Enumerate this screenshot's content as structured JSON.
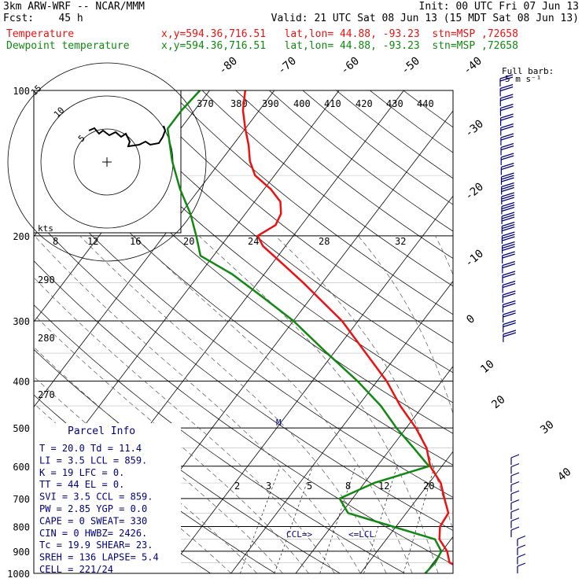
{
  "header": {
    "line1_left": "3km ARW-WRF -- NCAR/MMM",
    "line1_right": "Init: 00 UTC Fri 07 Jun 13",
    "line2_left": "Fcst:    45 h",
    "line2_right": "Valid: 21 UTC Sat 08 Jun 13 (15 MDT Sat 08 Jun 13)",
    "temp_label": "Temperature",
    "temp_info": "x,y=594.36,716.51   lat,lon= 44.88, -93.23  stn=MSP ,72658",
    "dew_label": "Dewpoint temperature",
    "dew_info": "x,y=594.36,716.51   lat,lon= 44.88, -93.23  stn=MSP ,72658"
  },
  "colors": {
    "temperature": "#ee1111",
    "dewpoint": "#118811",
    "text": "#000000",
    "parcel": "#000080",
    "barb": "#000080"
  },
  "chart_data": {
    "type": "line",
    "diagram": "skew-T log-p",
    "pressure_levels": [
      100,
      200,
      300,
      400,
      500,
      600,
      700,
      800,
      900,
      1000
    ],
    "isotherm_labels": [
      -80,
      -70,
      -60,
      -50,
      -40,
      -30,
      -20,
      -10,
      0,
      10,
      20,
      30,
      40
    ],
    "theta_labels": [
      370,
      380,
      390,
      400,
      410,
      420,
      430,
      440
    ],
    "theta_e_labels": [
      290,
      280,
      270
    ],
    "mixing_ratio_upper": [
      8,
      12,
      16,
      20,
      24,
      28,
      32
    ],
    "mixing_ratio_lower": [
      2,
      3,
      5,
      8,
      12,
      20
    ],
    "hodograph": {
      "units_label": "kts",
      "ring_labels": [
        "5",
        "10",
        "15"
      ]
    },
    "wind_barb_legend": {
      "line1": "Full barb:",
      "line2": "5 m s⁻¹"
    },
    "annotations": {
      "ccl": "CCL=>",
      "lcl": "<=LCL"
    },
    "series": [
      {
        "name": "Temperature",
        "points": [
          {
            "p": 1000,
            "t": 27.0
          },
          {
            "p": 950,
            "t": 22.5
          },
          {
            "p": 900,
            "t": 20.8
          },
          {
            "p": 850,
            "t": 18.2
          },
          {
            "p": 800,
            "t": 16.8
          },
          {
            "p": 750,
            "t": 16.5
          },
          {
            "p": 700,
            "t": 14.2
          },
          {
            "p": 650,
            "t": 11.8
          },
          {
            "p": 600,
            "t": 8.2
          },
          {
            "p": 550,
            "t": 5.5
          },
          {
            "p": 500,
            "t": 1.5
          },
          {
            "p": 450,
            "t": -3.5
          },
          {
            "p": 400,
            "t": -8.5
          },
          {
            "p": 350,
            "t": -15.0
          },
          {
            "p": 300,
            "t": -22.5
          },
          {
            "p": 250,
            "t": -33.0
          },
          {
            "p": 230,
            "t": -38.0
          },
          {
            "p": 210,
            "t": -43.5
          },
          {
            "p": 200,
            "t": -45.5
          },
          {
            "p": 190,
            "t": -44.0
          },
          {
            "p": 180,
            "t": -44.5
          },
          {
            "p": 170,
            "t": -46.0
          },
          {
            "p": 160,
            "t": -49.0
          },
          {
            "p": 150,
            "t": -53.0
          },
          {
            "p": 140,
            "t": -55.5
          },
          {
            "p": 130,
            "t": -57.5
          },
          {
            "p": 120,
            "t": -60.0
          },
          {
            "p": 110,
            "t": -62.5
          },
          {
            "p": 100,
            "t": -64.5
          }
        ]
      },
      {
        "name": "Dewpoint temperature",
        "points": [
          {
            "p": 1000,
            "t": 20.0
          },
          {
            "p": 950,
            "t": 20.3
          },
          {
            "p": 900,
            "t": 19.9
          },
          {
            "p": 850,
            "t": 17.5
          },
          {
            "p": 800,
            "t": 9.5
          },
          {
            "p": 750,
            "t": 1.0
          },
          {
            "p": 700,
            "t": -2.0
          },
          {
            "p": 650,
            "t": 1.5
          },
          {
            "p": 600,
            "t": 8.0
          },
          {
            "p": 550,
            "t": 3.5
          },
          {
            "p": 500,
            "t": -1.5
          },
          {
            "p": 450,
            "t": -6.5
          },
          {
            "p": 400,
            "t": -13.0
          },
          {
            "p": 350,
            "t": -21.0
          },
          {
            "p": 300,
            "t": -30.0
          },
          {
            "p": 270,
            "t": -37.0
          },
          {
            "p": 240,
            "t": -45.0
          },
          {
            "p": 220,
            "t": -52.0
          },
          {
            "p": 200,
            "t": -55.0
          },
          {
            "p": 180,
            "t": -58.5
          },
          {
            "p": 160,
            "t": -63.0
          },
          {
            "p": 140,
            "t": -67.5
          },
          {
            "p": 120,
            "t": -72.0
          },
          {
            "p": 110,
            "t": -72.0
          },
          {
            "p": 100,
            "t": -71.5
          }
        ]
      }
    ]
  },
  "parcel": {
    "title": "Parcel Info",
    "rows": [
      "T  =   20.0  Td =  11.4",
      "LI =    3.5  LCL =  859.",
      "K  =     19  LFC =    0.",
      "TT =     44  EL  =    0.",
      "SVI =   3.5  CCL =  859.",
      "PW =   2.85  YGP =   0.0",
      "CAPE =    0  SWEAT=  330",
      "CIN  =    0  HWBZ= 2426.",
      "Tc  =  19.9  SHEAR=  23.",
      "SREH =  136  LAPSE=  5.4",
      "CELL = 221/24"
    ]
  }
}
